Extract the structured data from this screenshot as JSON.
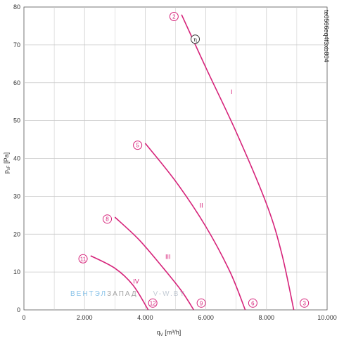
{
  "chart_data": {
    "type": "line",
    "xlabel_main": "q",
    "xlabel_sub": "V",
    "xlabel_unit": " [m³/h]",
    "ylabel_main": "p",
    "ylabel_sub": "sF",
    "ylabel_unit": " [Pa]",
    "xlim": [
      0,
      10000
    ],
    "ylim": [
      0,
      80
    ],
    "x_ticks": [
      0,
      2000,
      4000,
      6000,
      8000,
      10000
    ],
    "x_tick_labels": [
      "0",
      "2.000",
      "4.000",
      "6.000",
      "8.000",
      "10.000"
    ],
    "y_ticks": [
      0,
      10,
      20,
      30,
      40,
      50,
      60,
      70,
      80
    ],
    "y_tick_labels": [
      "0",
      "10",
      "20",
      "30",
      "40",
      "50",
      "60",
      "70",
      "80"
    ],
    "grid": true,
    "doc_id": "te0566eq4f3xb804",
    "series": [
      {
        "name": "I",
        "label_at": [
          6850,
          57
        ],
        "points": [
          [
            5200,
            78
          ],
          [
            6000,
            64
          ],
          [
            7000,
            47
          ],
          [
            8000,
            28
          ],
          [
            8500,
            15
          ],
          [
            8900,
            0
          ]
        ]
      },
      {
        "name": "II",
        "label_at": [
          5850,
          27
        ],
        "points": [
          [
            4000,
            44
          ],
          [
            5000,
            34
          ],
          [
            6000,
            22
          ],
          [
            6800,
            10
          ],
          [
            7300,
            0
          ]
        ]
      },
      {
        "name": "III",
        "label_at": [
          4750,
          13.5
        ],
        "points": [
          [
            3000,
            24.5
          ],
          [
            3800,
            18.5
          ],
          [
            4600,
            11
          ],
          [
            5200,
            5
          ],
          [
            5600,
            0
          ]
        ]
      },
      {
        "name": "IV",
        "label_at": [
          3700,
          7
        ],
        "points": [
          [
            2200,
            14.3
          ],
          [
            3000,
            11
          ],
          [
            3600,
            6.5
          ],
          [
            4100,
            0
          ]
        ]
      }
    ],
    "markers": [
      {
        "label": "2",
        "x": 4950,
        "y": 77.5,
        "color": "#d6237a"
      },
      {
        "label": "η",
        "x": 5650,
        "y": 71.5,
        "color": "#333333"
      },
      {
        "label": "3",
        "x": 9250,
        "y": 1.8,
        "color": "#d6237a"
      },
      {
        "label": "5",
        "x": 3750,
        "y": 43.5,
        "color": "#d6237a"
      },
      {
        "label": "6",
        "x": 7550,
        "y": 1.8,
        "color": "#d6237a"
      },
      {
        "label": "8",
        "x": 2750,
        "y": 24,
        "color": "#d6237a"
      },
      {
        "label": "9",
        "x": 5850,
        "y": 1.8,
        "color": "#d6237a"
      },
      {
        "label": "11",
        "x": 1950,
        "y": 13.5,
        "color": "#d6237a"
      },
      {
        "label": "12",
        "x": 4250,
        "y": 1.8,
        "color": "#d6237a"
      }
    ],
    "colors": {
      "curve": "#d6237a",
      "grid": "#c8c8c8",
      "axis": "#555555"
    }
  },
  "watermark": {
    "part1": "ВЕНТЭЛ",
    "part2": "ЗАПАД",
    "part3": "V-W.BY"
  }
}
